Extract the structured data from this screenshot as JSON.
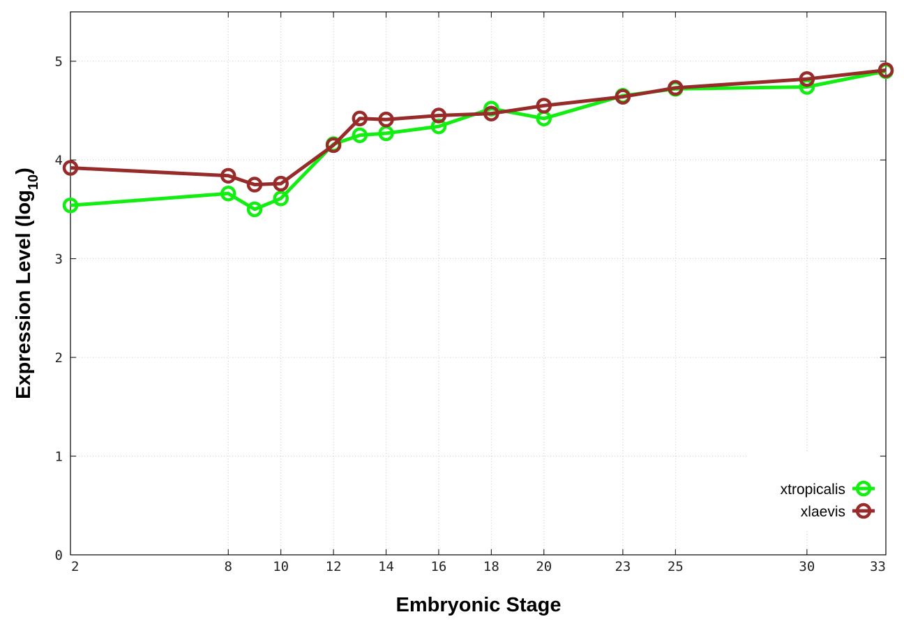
{
  "chart_data": {
    "type": "line",
    "xlabel": "Embryonic Stage",
    "ylabel_main": "Expression Level (log",
    "ylabel_sub": "10",
    "ylabel_close": ")",
    "x_ticks": [
      2,
      8,
      10,
      12,
      14,
      16,
      18,
      20,
      23,
      25,
      30,
      33
    ],
    "x_tick_positions": [
      2,
      8,
      10,
      12,
      14,
      16,
      18,
      20,
      23,
      25,
      30,
      33
    ],
    "x_tick_labels": [
      "2",
      "8",
      "10",
      "12",
      "14",
      "16",
      "18",
      "20",
      "23",
      "25",
      "30",
      "33"
    ],
    "y_ticks": [
      0,
      1,
      2,
      3,
      4,
      5
    ],
    "y_tick_labels": [
      "0",
      "1",
      "2",
      "3",
      "4",
      "5"
    ],
    "xlim": [
      2,
      33
    ],
    "ylim": [
      0,
      5.5
    ],
    "grid": true,
    "legend_position": "bottom-right",
    "series": [
      {
        "name": "xtropicalis",
        "color": "#12ee12",
        "x": [
          2,
          8,
          9,
          10,
          12,
          13,
          14,
          16,
          18,
          20,
          23,
          25,
          30,
          33
        ],
        "y": [
          3.54,
          3.66,
          3.5,
          3.61,
          4.16,
          4.25,
          4.27,
          4.34,
          4.52,
          4.42,
          4.65,
          4.72,
          4.74,
          4.9
        ]
      },
      {
        "name": "xlaevis",
        "color": "#962b29",
        "x": [
          2,
          8,
          9,
          10,
          12,
          13,
          14,
          16,
          18,
          20,
          23,
          25,
          30,
          33
        ],
        "y": [
          3.92,
          3.84,
          3.75,
          3.76,
          4.15,
          4.42,
          4.41,
          4.45,
          4.47,
          4.55,
          4.64,
          4.73,
          4.82,
          4.91
        ]
      }
    ]
  }
}
